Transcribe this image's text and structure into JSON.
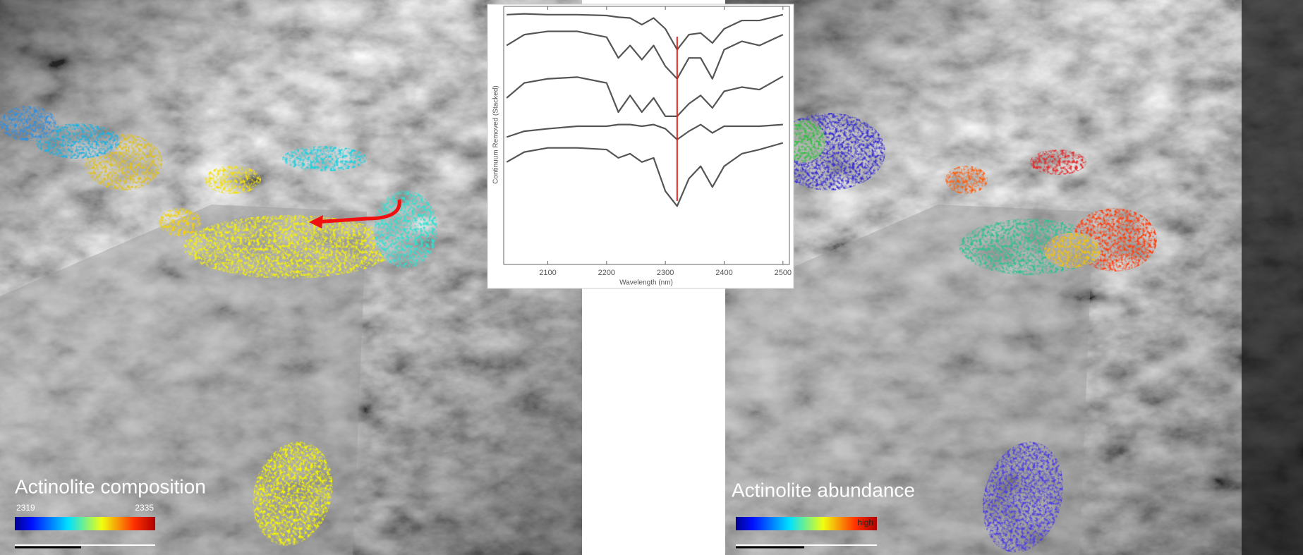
{
  "panels": [
    {
      "label": "Actinolite composition",
      "colorbar": {
        "min_label": 2319,
        "max_label": 2335
      }
    },
    {
      "label": "Actinolite abundance",
      "colorbar": {
        "max_label": "high"
      }
    }
  ],
  "chart_data": {
    "type": "line",
    "xlabel": "Wavelength (nm)",
    "ylabel": "Continuum Removed (Stacked)",
    "x": [
      2030,
      2060,
      2100,
      2150,
      2200,
      2220,
      2240,
      2260,
      2280,
      2300,
      2320,
      2340,
      2360,
      2380,
      2400,
      2430,
      2460,
      2500
    ],
    "series": [
      {
        "color": "#555555",
        "values": [
          300,
          301,
          300,
          300,
          299,
          297,
          296,
          288,
          296,
          283,
          258,
          276,
          278,
          266,
          283,
          293,
          293,
          300
        ]
      },
      {
        "color": "#555555",
        "values": [
          263,
          276,
          280,
          280,
          273,
          248,
          263,
          246,
          263,
          238,
          223,
          248,
          248,
          223,
          258,
          268,
          263,
          276
        ]
      },
      {
        "color": "#555555",
        "values": [
          200,
          218,
          223,
          225,
          218,
          183,
          203,
          183,
          200,
          178,
          178,
          193,
          203,
          188,
          208,
          213,
          210,
          226
        ]
      },
      {
        "color": "#555555",
        "values": [
          153,
          160,
          163,
          166,
          166,
          168,
          168,
          166,
          168,
          163,
          150,
          160,
          168,
          158,
          166,
          166,
          166,
          168
        ]
      },
      {
        "color": "#555555",
        "values": [
          123,
          135,
          140,
          140,
          138,
          128,
          133,
          123,
          128,
          88,
          70,
          103,
          118,
          93,
          118,
          133,
          138,
          146
        ]
      }
    ],
    "marker_x": 2320,
    "marker_color": "#e8201c",
    "xlim": [
      2025,
      2511
    ],
    "xticks": [
      2100,
      2200,
      2300,
      2400,
      2500
    ],
    "ylim": [
      0,
      310
    ]
  }
}
